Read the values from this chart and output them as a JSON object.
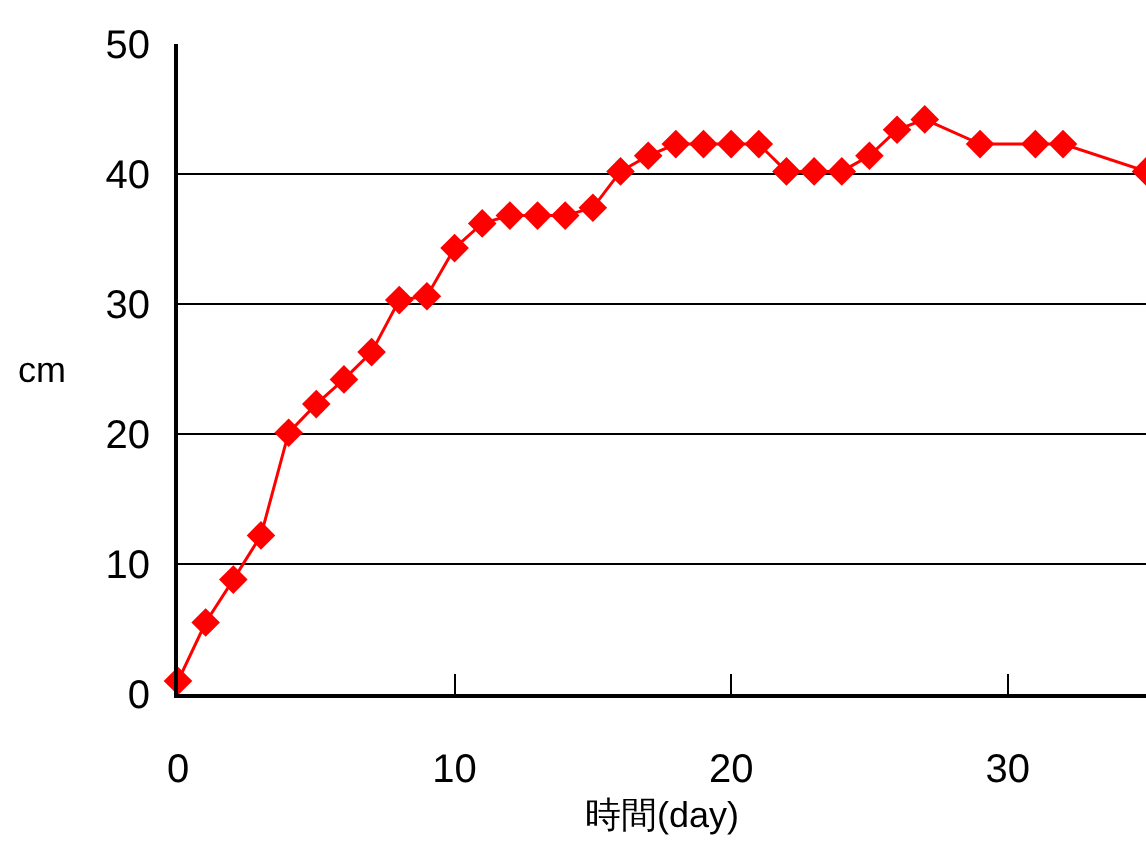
{
  "chart_data": {
    "type": "line",
    "xlabel": "時間(day)",
    "ylabel": "cm",
    "x": [
      0,
      1,
      2,
      3,
      4,
      5,
      6,
      7,
      8,
      9,
      10,
      11,
      12,
      13,
      14,
      15,
      16,
      17,
      18,
      19,
      20,
      21,
      22,
      23,
      24,
      25,
      26,
      27,
      29,
      31,
      32,
      35
    ],
    "series": [
      {
        "color": "#ff0000",
        "values": [
          1,
          5.5,
          8.8,
          12.2,
          20.1,
          22.3,
          24.2,
          26.3,
          30.3,
          30.6,
          34.3,
          36.2,
          36.8,
          36.8,
          36.8,
          37.4,
          40.2,
          41.4,
          42.3,
          42.3,
          42.3,
          42.3,
          40.2,
          40.2,
          40.2,
          41.4,
          43.4,
          44.2,
          42.3,
          42.3,
          42.3,
          40.2
        ]
      }
    ],
    "xlim": [
      0,
      35
    ],
    "xticks": [
      0,
      10,
      20,
      30
    ],
    "ylim": [
      0,
      50
    ],
    "yticks": [
      0,
      10,
      20,
      30,
      40,
      50
    ],
    "grid": "y",
    "marker": "diamond",
    "line_style": "solid"
  }
}
